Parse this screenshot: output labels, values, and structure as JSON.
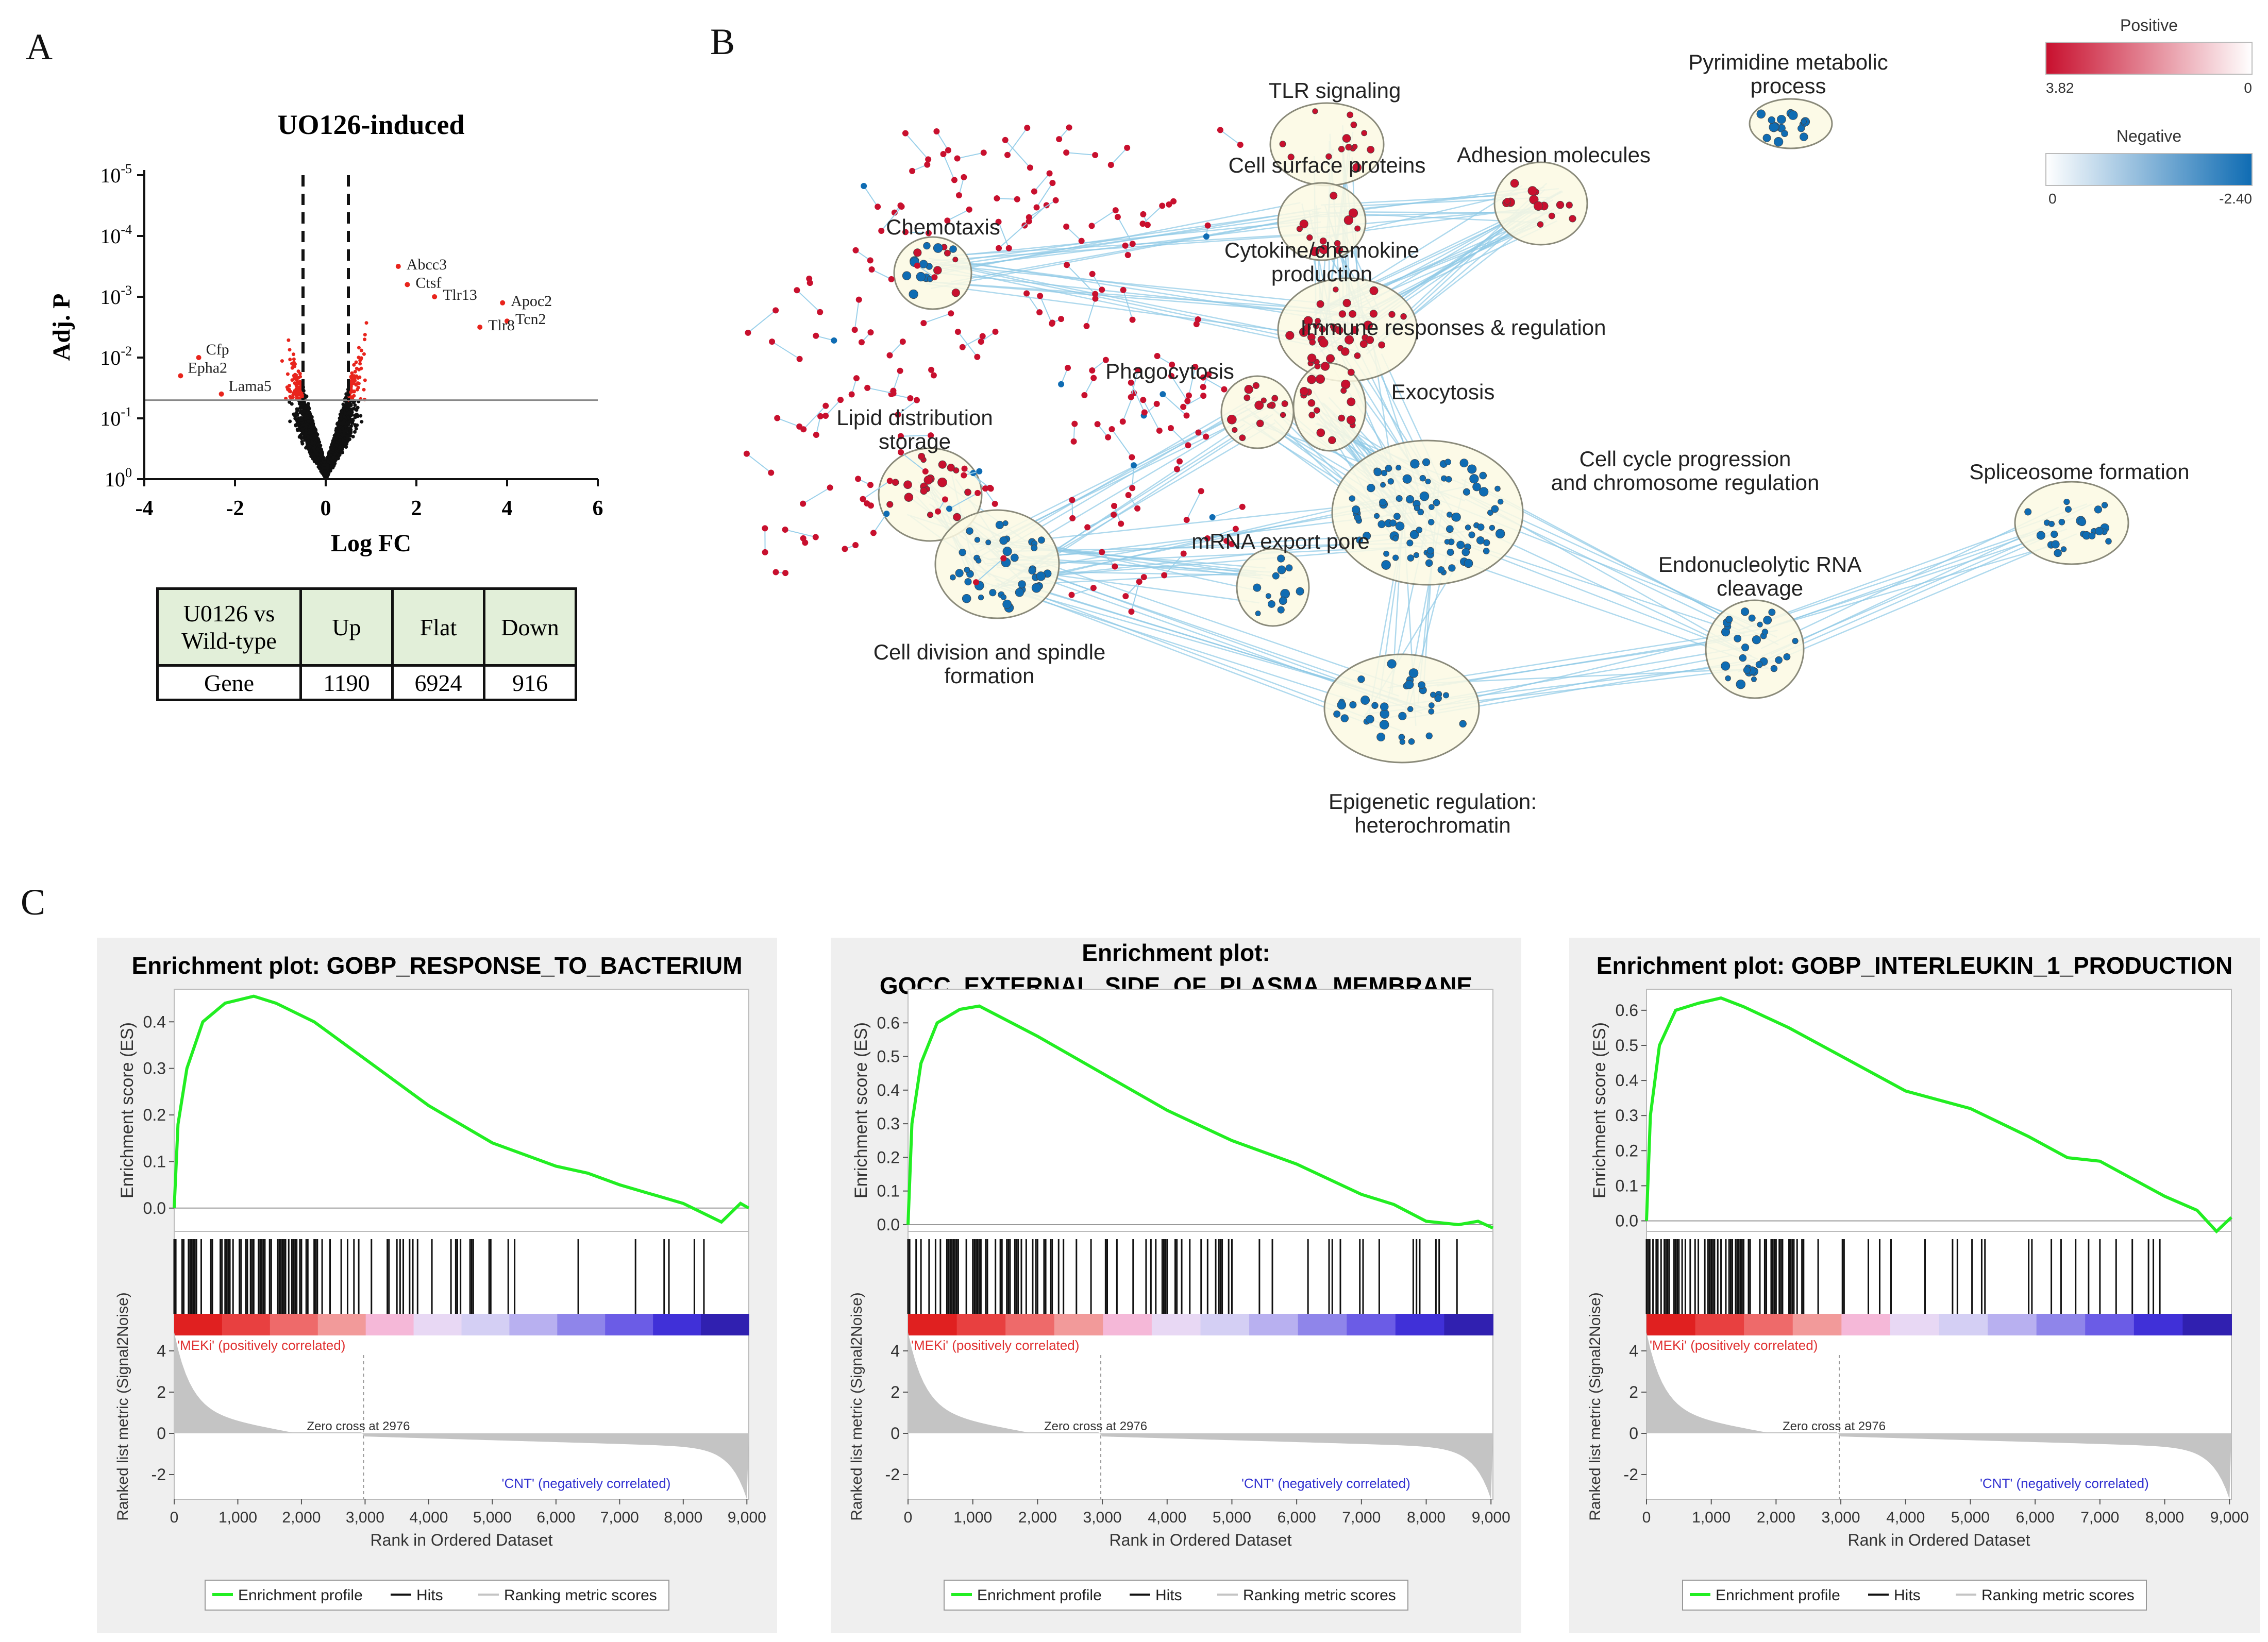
{
  "panel_labels": {
    "a": "A",
    "b": "B",
    "c": "C"
  },
  "table": {
    "header": [
      "U0126 vs Wild-type",
      "Up",
      "Flat",
      "Down"
    ],
    "rows": [
      [
        "Gene",
        "1190",
        "6924",
        "916"
      ]
    ]
  },
  "chart_data": [
    {
      "type": "scatter",
      "title": "UO126-induced",
      "xlabel": "Log FC",
      "ylabel": "Adj. P",
      "xlim": [
        -4,
        6
      ],
      "x_ticks": [
        "-4",
        "-2",
        "0",
        "2",
        "4",
        "6"
      ],
      "y_ticks": [
        {
          "base": "10",
          "exp": "-5"
        },
        {
          "base": "10",
          "exp": "-4"
        },
        {
          "base": "10",
          "exp": "-3"
        },
        {
          "base": "10",
          "exp": "-2"
        },
        {
          "base": "10",
          "exp": "-1"
        },
        {
          "base": "10",
          "exp": "0"
        }
      ],
      "thresholds": {
        "logfc": [
          -0.5,
          0.5
        ],
        "adjp_log10": 1.3
      },
      "labeled_points": [
        {
          "name": "Abcc3",
          "x": 1.6,
          "y": 3.5
        },
        {
          "name": "Ctsf",
          "x": 1.8,
          "y": 3.2
        },
        {
          "name": "Tlr13",
          "x": 2.4,
          "y": 3.0
        },
        {
          "name": "Apoc2",
          "x": 3.9,
          "y": 2.9
        },
        {
          "name": "Tcn2",
          "x": 4.0,
          "y": 2.6
        },
        {
          "name": "Tlr8",
          "x": 3.4,
          "y": 2.5
        },
        {
          "name": "Cfp",
          "x": -2.8,
          "y": 2.0
        },
        {
          "name": "Epha2",
          "x": -3.2,
          "y": 1.7
        },
        {
          "name": "Lama5",
          "x": -2.3,
          "y": 1.4
        }
      ]
    },
    {
      "type": "gsea",
      "title": [
        "Enrichment plot: GOBP_RESPONSE_TO_BACTERIUM"
      ],
      "ylabel_top": "Enrichment score (ES)",
      "ylabel_bottom": "Ranked list metric (Signal2Noise)",
      "xlabel": "Rank in Ordered Dataset",
      "es_ticks": [
        0.0,
        0.1,
        0.2,
        0.3,
        0.4
      ],
      "es_ylim": [
        -0.05,
        0.47
      ],
      "metric_ticks": [
        4,
        2,
        0,
        -2
      ],
      "x_ticks": [
        0,
        1000,
        2000,
        3000,
        4000,
        5000,
        6000,
        7000,
        8000,
        9000
      ],
      "x_tick_labels": [
        "0",
        "1,000",
        "2,000",
        "3,000",
        "4,000",
        "5,000",
        "6,000",
        "7,000",
        "8,000",
        "9,000"
      ],
      "n_genes": 9030,
      "es_curve": [
        [
          0,
          0
        ],
        [
          60,
          0.18
        ],
        [
          200,
          0.3
        ],
        [
          450,
          0.4
        ],
        [
          800,
          0.44
        ],
        [
          1250,
          0.455
        ],
        [
          1600,
          0.44
        ],
        [
          2200,
          0.4
        ],
        [
          3000,
          0.32
        ],
        [
          4000,
          0.22
        ],
        [
          5000,
          0.14
        ],
        [
          6000,
          0.09
        ],
        [
          6500,
          0.075
        ],
        [
          7000,
          0.05
        ],
        [
          7500,
          0.03
        ],
        [
          8000,
          0.01
        ],
        [
          8600,
          -0.03
        ],
        [
          8900,
          0.01
        ],
        [
          9030,
          0.0
        ]
      ],
      "hits_density": [
        0.55,
        0.9,
        0.12
      ],
      "zero_cross_rank": 2976,
      "zero_cross_label": "Zero cross at 2976",
      "pos_label": "'MEKi' (positively correlated)",
      "neg_label": "'CNT' (negatively correlated)",
      "legend": [
        "Enrichment profile",
        "Hits",
        "Ranking metric scores"
      ]
    },
    {
      "type": "gsea",
      "title": [
        "Enrichment plot:",
        "GOCC_EXTERNAL_SIDE_OF_PLASMA_MEMBRANE"
      ],
      "ylabel_top": "Enrichment score (ES)",
      "ylabel_bottom": "Ranked list metric (Signal2Noise)",
      "xlabel": "Rank in Ordered Dataset",
      "es_ticks": [
        0.0,
        0.1,
        0.2,
        0.3,
        0.4,
        0.5,
        0.6
      ],
      "es_ylim": [
        -0.02,
        0.7
      ],
      "metric_ticks": [
        4,
        2,
        0,
        -2
      ],
      "x_ticks": [
        0,
        1000,
        2000,
        3000,
        4000,
        5000,
        6000,
        7000,
        8000,
        9000
      ],
      "x_tick_labels": [
        "0",
        "1,000",
        "2,000",
        "3,000",
        "4,000",
        "5,000",
        "6,000",
        "7,000",
        "8,000",
        "9,000"
      ],
      "n_genes": 9030,
      "es_curve": [
        [
          0,
          0
        ],
        [
          60,
          0.3
        ],
        [
          200,
          0.48
        ],
        [
          450,
          0.6
        ],
        [
          800,
          0.64
        ],
        [
          1100,
          0.65
        ],
        [
          1400,
          0.62
        ],
        [
          2000,
          0.56
        ],
        [
          3000,
          0.45
        ],
        [
          4000,
          0.34
        ],
        [
          5000,
          0.25
        ],
        [
          6000,
          0.18
        ],
        [
          7000,
          0.09
        ],
        [
          7500,
          0.06
        ],
        [
          8000,
          0.01
        ],
        [
          8500,
          0.0
        ],
        [
          8800,
          0.01
        ],
        [
          9030,
          -0.01
        ]
      ],
      "hits_density": [
        0.5,
        0.95,
        0.15
      ],
      "zero_cross_rank": 2976,
      "zero_cross_label": "Zero cross at 2976",
      "pos_label": "'MEKi' (positively correlated)",
      "neg_label": "'CNT' (negatively correlated)",
      "legend": [
        "Enrichment profile",
        "Hits",
        "Ranking metric scores"
      ]
    },
    {
      "type": "gsea",
      "title": [
        "Enrichment plot: GOBP_INTERLEUKIN_1_PRODUCTION"
      ],
      "ylabel_top": "Enrichment score (ES)",
      "ylabel_bottom": "Ranked list metric (Signal2Noise)",
      "xlabel": "Rank in Ordered Dataset",
      "es_ticks": [
        0.0,
        0.1,
        0.2,
        0.3,
        0.4,
        0.5,
        0.6
      ],
      "es_ylim": [
        -0.03,
        0.66
      ],
      "metric_ticks": [
        4,
        2,
        0,
        -2
      ],
      "x_ticks": [
        0,
        1000,
        2000,
        3000,
        4000,
        5000,
        6000,
        7000,
        8000,
        9000
      ],
      "x_tick_labels": [
        "0",
        "1,000",
        "2,000",
        "3,000",
        "4,000",
        "5,000",
        "6,000",
        "7,000",
        "8,000",
        "9,000"
      ],
      "n_genes": 9030,
      "es_curve": [
        [
          0,
          0
        ],
        [
          60,
          0.3
        ],
        [
          200,
          0.5
        ],
        [
          450,
          0.6
        ],
        [
          800,
          0.62
        ],
        [
          1150,
          0.635
        ],
        [
          1500,
          0.61
        ],
        [
          2200,
          0.55
        ],
        [
          3000,
          0.47
        ],
        [
          4000,
          0.37
        ],
        [
          5000,
          0.32
        ],
        [
          5900,
          0.24
        ],
        [
          6500,
          0.18
        ],
        [
          7000,
          0.17
        ],
        [
          7500,
          0.12
        ],
        [
          8000,
          0.07
        ],
        [
          8500,
          0.03
        ],
        [
          8800,
          -0.03
        ],
        [
          9030,
          0.01
        ]
      ],
      "hits_density": [
        0.45,
        0.95,
        0.1
      ],
      "zero_cross_rank": 2976,
      "zero_cross_label": "Zero cross at 2976",
      "pos_label": "'MEKi' (positively correlated)",
      "neg_label": "'CNT' (negatively correlated)",
      "legend": [
        "Enrichment profile",
        "Hits",
        "Ranking metric scores"
      ]
    }
  ],
  "network": {
    "clusters": [
      {
        "label": [
          "TLR signaling"
        ],
        "color": "red"
      },
      {
        "label": [
          "Cell surface proteins"
        ],
        "color": "red"
      },
      {
        "label": [
          "Adhesion molecules"
        ],
        "color": "red"
      },
      {
        "label": [
          "Pyrimidine metabolic",
          "process"
        ],
        "color": "blue"
      },
      {
        "label": [
          "Chemotaxis"
        ],
        "color": "mixed"
      },
      {
        "label": [
          "Cytokine/chemokine",
          "production"
        ],
        "color": "red"
      },
      {
        "label": [
          "Immune responses & regulation"
        ],
        "color": "red"
      },
      {
        "label": [
          "Phagocytosis"
        ],
        "color": "red"
      },
      {
        "label": [
          "Exocytosis"
        ],
        "color": "red"
      },
      {
        "label": [
          "Lipid distribution",
          "storage"
        ],
        "color": "red"
      },
      {
        "label": [
          "Cell cycle progression",
          "and chromosome regulation"
        ],
        "color": "blue"
      },
      {
        "label": [
          "Spliceosome formation"
        ],
        "color": "blue"
      },
      {
        "label": [
          "mRNA export pore"
        ],
        "color": "blue"
      },
      {
        "label": [
          "Endonucleolytic RNA",
          "cleavage"
        ],
        "color": "blue"
      },
      {
        "label": [
          "Cell division and spindle",
          "formation"
        ],
        "color": "blue"
      },
      {
        "label": [
          "Epigenetic regulation:",
          "heterochromatin"
        ],
        "color": "blue"
      }
    ],
    "legend": {
      "positive_title": "Positive",
      "positive_max": "3.82",
      "positive_min": "0",
      "negative_title": "Negative",
      "negative_min": "0",
      "negative_max": "-2.40",
      "positive_color": "#c8102e",
      "negative_color": "#0f6cb3"
    }
  }
}
